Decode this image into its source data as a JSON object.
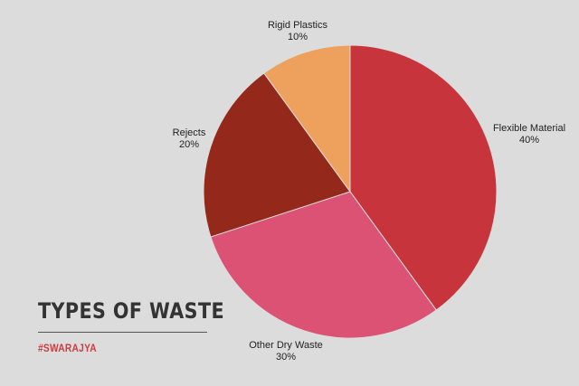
{
  "title": "TYPES OF WASTE",
  "brand": "#SWARAJYA",
  "chart_data": {
    "type": "pie",
    "slices": [
      {
        "label": "Flexible Material",
        "percent_label": "40%",
        "value": 40,
        "color": "#c8343c"
      },
      {
        "label": "Other Dry Waste",
        "percent_label": "30%",
        "value": 30,
        "color": "#db5274"
      },
      {
        "label": "Rejects",
        "percent_label": "20%",
        "value": 20,
        "color": "#93281b"
      },
      {
        "label": "Rigid Plastics",
        "percent_label": "10%",
        "value": 10,
        "color": "#eda15c"
      }
    ]
  }
}
